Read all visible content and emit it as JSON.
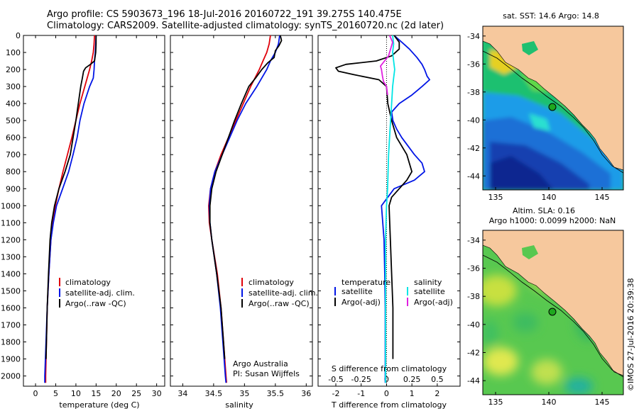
{
  "header": {
    "line1": "Argo profile: CS 5903673_196 18-Jul-2016 20160722_191 39.275S 140.475E",
    "line2": "Climatology: CARS2009. Satellite-adjusted climatology: synTS_20160720.nc (2d later)"
  },
  "map_top": {
    "title": "sat. SST: 14.6 Argo: 14.8",
    "x_ticks": [
      "135",
      "140",
      "145"
    ],
    "y_ticks": [
      "-34",
      "-36",
      "-38",
      "-40",
      "-42",
      "-44"
    ]
  },
  "map_bottom": {
    "title1": "Altim. SLA: 0.16",
    "title2": "Argo h1000: 0.0099 h2000: NaN",
    "x_ticks": [
      "135",
      "140",
      "145"
    ],
    "y_ticks": [
      "-34",
      "-36",
      "-38",
      "-40",
      "-42",
      "-44"
    ]
  },
  "side_label": "©IMOS 27-Jul-2016 20:39:38",
  "credits": {
    "line1": "Argo Australia",
    "line2": "PI: Susan Wijffels"
  },
  "colors": {
    "climatology": "#e0000a",
    "satellite": "#0015e6",
    "argo": "#000000",
    "s_sat": "#00e5e5",
    "s_argo": "#e020e0",
    "land": "#f6c89d",
    "float": "#1ea81e"
  },
  "chart_data": [
    {
      "type": "line",
      "xlabel": "temperature (deg C)",
      "x_ticks": [
        "0",
        "5",
        "10",
        "15",
        "20",
        "25",
        "30"
      ],
      "xlim": [
        -3,
        32
      ],
      "ylim": [
        2060,
        0
      ],
      "y_ticks": [
        "0",
        "100",
        "200",
        "300",
        "400",
        "500",
        "600",
        "700",
        "800",
        "900",
        "1000",
        "1100",
        "1200",
        "1300",
        "1400",
        "1500",
        "1600",
        "1700",
        "1800",
        "1900",
        "2000"
      ],
      "legend": [
        "climatology",
        "satellite-adj. clim.",
        "Argo(..raw -QC)"
      ],
      "series": [
        {
          "name": "climatology",
          "depth": [
            0,
            50,
            100,
            150,
            200,
            250,
            300,
            400,
            500,
            600,
            700,
            800,
            900,
            1000,
            1100,
            1200,
            1400,
            1600,
            1800,
            2000,
            2040
          ],
          "values": [
            14.6,
            14.5,
            14.3,
            13.9,
            13.4,
            12.8,
            12.2,
            11.0,
            10.0,
            9.0,
            7.9,
            6.8,
            5.8,
            4.9,
            4.3,
            3.8,
            3.3,
            2.9,
            2.7,
            2.5,
            2.5
          ]
        },
        {
          "name": "satellite-adj. clim.",
          "depth": [
            0,
            50,
            100,
            150,
            200,
            250,
            300,
            400,
            500,
            600,
            700,
            800,
            900,
            1000,
            1100,
            1200,
            1400,
            1600,
            1800,
            2000,
            2040
          ],
          "values": [
            15.0,
            14.9,
            14.8,
            14.6,
            14.5,
            14.3,
            13.4,
            12.0,
            11.0,
            10.3,
            9.3,
            8.2,
            6.7,
            5.2,
            4.4,
            3.8,
            3.3,
            2.9,
            2.6,
            2.3,
            2.3
          ]
        },
        {
          "name": "Argo(..raw -QC)",
          "depth": [
            0,
            50,
            100,
            150,
            170,
            190,
            210,
            250,
            300,
            400,
            500,
            600,
            700,
            800,
            900,
            1000,
            1100,
            1200,
            1400,
            1600,
            1800,
            1900
          ],
          "values": [
            15.0,
            15.0,
            14.9,
            14.6,
            13.6,
            12.4,
            11.9,
            11.6,
            11.2,
            10.6,
            10.0,
            9.3,
            8.6,
            7.3,
            5.8,
            4.7,
            4.0,
            3.6,
            3.2,
            2.9,
            2.7,
            2.6
          ]
        }
      ]
    },
    {
      "type": "line",
      "xlabel": "salinity",
      "x_ticks": [
        "34",
        "34.5",
        "35",
        "35.5",
        "36"
      ],
      "xlim": [
        33.8,
        36.1
      ],
      "ylim": [
        2060,
        0
      ],
      "legend": [
        "climatology",
        "satellite-adj. clim.",
        "Argo(..raw -QC)"
      ],
      "series": [
        {
          "name": "climatology",
          "depth": [
            0,
            50,
            100,
            150,
            200,
            300,
            400,
            500,
            600,
            700,
            800,
            900,
            1000,
            1100,
            1200,
            1400,
            1600,
            1800,
            2000,
            2040
          ],
          "values": [
            35.42,
            35.4,
            35.36,
            35.3,
            35.24,
            35.1,
            34.98,
            34.86,
            34.74,
            34.62,
            34.52,
            34.45,
            34.42,
            34.43,
            34.47,
            34.56,
            34.62,
            34.66,
            34.7,
            34.71
          ]
        },
        {
          "name": "satellite-adj. clim.",
          "depth": [
            0,
            50,
            100,
            150,
            200,
            300,
            400,
            500,
            600,
            700,
            800,
            900,
            1000,
            1100,
            1200,
            1400,
            1600,
            1800,
            2000,
            2040
          ],
          "values": [
            35.57,
            35.55,
            35.5,
            35.42,
            35.36,
            35.2,
            35.02,
            34.88,
            34.76,
            34.64,
            34.52,
            34.45,
            34.43,
            34.44,
            34.47,
            34.55,
            34.61,
            34.65,
            34.69,
            34.7
          ]
        },
        {
          "name": "Argo(..raw -QC)",
          "depth": [
            0,
            30,
            60,
            90,
            130,
            160,
            200,
            250,
            300,
            400,
            500,
            600,
            700,
            800,
            900,
            1000,
            1100,
            1200,
            1400,
            1600,
            1800,
            1900
          ],
          "values": [
            35.58,
            35.6,
            35.56,
            35.5,
            35.48,
            35.38,
            35.28,
            35.18,
            35.07,
            34.95,
            34.84,
            34.74,
            34.64,
            34.54,
            34.47,
            34.44,
            34.44,
            34.47,
            34.55,
            34.62,
            34.66,
            34.68
          ]
        }
      ]
    },
    {
      "type": "line",
      "xlabel": "T difference from climatology",
      "x_ticks": [
        "-2",
        "-1",
        "0",
        "1",
        "2"
      ],
      "xlim": [
        -2.7,
        2.9
      ],
      "top_xlabel": "S difference from climatology",
      "top_ticks": [
        "-0.5",
        "-0.25",
        "0",
        "0.25",
        "0.5"
      ],
      "ylim": [
        2060,
        0
      ],
      "legend_titles": [
        "temperature",
        "salinity"
      ],
      "legend": [
        "satellite",
        "Argo(-adj)",
        "satellite",
        "Argo(-adj)"
      ],
      "series": [
        {
          "name": "satellite",
          "depth": [
            0,
            40,
            80,
            130,
            170,
            200,
            240,
            260,
            300,
            350,
            400,
            450,
            500,
            550,
            600,
            700,
            750,
            800,
            850,
            900,
            1000,
            1100,
            1200,
            1400,
            1600,
            1800,
            2000,
            2040
          ],
          "values": [
            0.3,
            0.6,
            0.9,
            1.2,
            1.4,
            1.5,
            1.6,
            1.7,
            1.4,
            1.0,
            0.5,
            0.2,
            0.25,
            0.4,
            0.6,
            1.1,
            1.4,
            1.5,
            1.1,
            0.3,
            -0.2,
            -0.15,
            -0.1,
            -0.07,
            -0.05,
            -0.05,
            -0.05,
            -0.05
          ]
        },
        {
          "name": "Argo(-adj)",
          "depth": [
            0,
            40,
            80,
            120,
            150,
            170,
            190,
            210,
            230,
            260,
            300,
            400,
            500,
            600,
            700,
            800,
            850,
            900,
            950,
            1000,
            1200,
            1400,
            1600,
            1800,
            1900
          ],
          "values": [
            0.3,
            0.5,
            0.5,
            0.2,
            -0.4,
            -1.6,
            -2.0,
            -1.9,
            -1.3,
            -0.3,
            0.0,
            0.05,
            0.2,
            0.4,
            0.8,
            1.0,
            0.8,
            0.5,
            0.2,
            0.1,
            0.15,
            0.2,
            0.25,
            0.25,
            0.25
          ]
        },
        {
          "name": "satellite",
          "depth": [
            0,
            50,
            100,
            150,
            200,
            250,
            300,
            400,
            500,
            700,
            900,
            1000,
            1200,
            1400,
            1600,
            1800,
            2000,
            2040
          ],
          "values": [
            0.06,
            0.07,
            0.06,
            0.07,
            0.08,
            0.07,
            0.06,
            0.05,
            0.04,
            0.02,
            0.01,
            0.0,
            -0.01,
            -0.01,
            -0.01,
            -0.01,
            -0.01,
            -0.01
          ]
        },
        {
          "name": "Argo(-adj)",
          "depth": [
            0,
            40,
            80,
            120,
            150,
            180,
            200,
            240,
            270,
            300,
            350
          ],
          "values": [
            0.03,
            0.06,
            0.04,
            0.02,
            -0.02,
            -0.06,
            -0.05,
            -0.04,
            -0.03,
            0.0,
            0.01
          ]
        }
      ]
    }
  ]
}
